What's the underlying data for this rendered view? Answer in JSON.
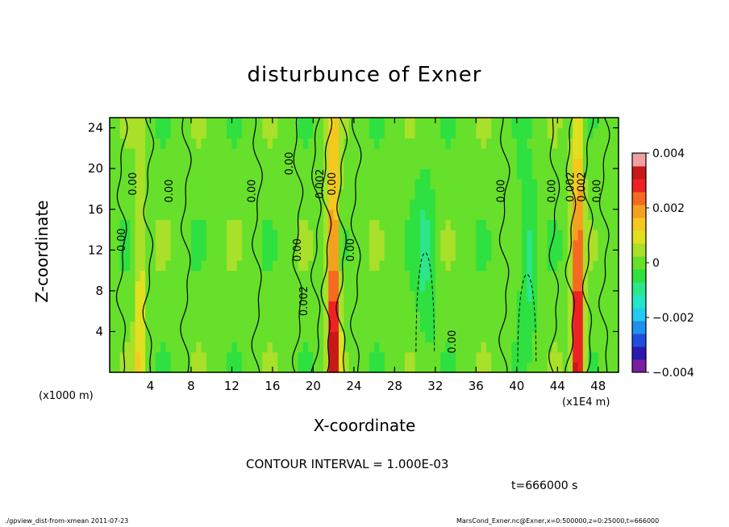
{
  "title": "disturbunce of Exner",
  "footer": {
    "left": "./gpview_dist-from-xmean   2011-07-23",
    "right": "MarsCond_Exner.nc@Exner,x=0:500000,z=0:25000,t=666000"
  },
  "contour_interval": "CONTOUR INTERVAL = 1.000E-03",
  "time_label": "t=666000 s",
  "chart_data": {
    "type": "heatmap",
    "title": "disturbunce of Exner",
    "xlabel": "X-coordinate",
    "ylabel": "Z-coordinate",
    "x_unit_label": "(x1000 m)",
    "x_scale_label": "(x1E4 m)",
    "xlim": [
      0,
      50
    ],
    "ylim": [
      0,
      25
    ],
    "x_ticks": [
      4,
      8,
      12,
      16,
      20,
      24,
      28,
      32,
      36,
      40,
      44,
      48
    ],
    "x_tick_labels": [
      "4",
      "8",
      "12",
      "16",
      "20",
      "24",
      "28",
      "32",
      "36",
      "40",
      "44",
      "48"
    ],
    "y_ticks": [
      4,
      8,
      12,
      16,
      20,
      24
    ],
    "y_tick_labels": [
      "4",
      "8",
      "12",
      "16",
      "20",
      "24"
    ],
    "colorbar": {
      "min": -0.004,
      "max": 0.004,
      "ticks": [
        0.004,
        0.002,
        0,
        -0.002,
        -0.004
      ],
      "tick_labels": [
        "0.004",
        "0.002",
        "0",
        "−0.002",
        "−0.004"
      ],
      "colors": [
        "#7a1fa0",
        "#2a1ab0",
        "#1f4fe0",
        "#1f8ff0",
        "#22ccf0",
        "#22e6c8",
        "#2ce68a",
        "#2ee040",
        "#66e02a",
        "#a8e02a",
        "#e0e020",
        "#f5c820",
        "#f5a020",
        "#f56a20",
        "#ee2222",
        "#c81818",
        "#f0a0a0"
      ]
    },
    "features": [
      {
        "x": 22,
        "amplitude": 0.0035,
        "width": 0.55,
        "label": "positive column"
      },
      {
        "x": 46,
        "amplitude": 0.0035,
        "width": 0.55,
        "label": "positive column"
      },
      {
        "x": 3,
        "amplitude": 0.0012,
        "width": 0.5,
        "label": "weak positive"
      },
      {
        "x": 31,
        "amplitude": -0.0008,
        "width": 0.9,
        "label": "negative region"
      },
      {
        "x": 41,
        "amplitude": -0.001,
        "width": 0.8,
        "label": "negative region"
      }
    ],
    "contour_labels": [
      "0.00",
      "0.00",
      "0.00",
      "0.00",
      "0.00",
      "0.002",
      "0.002",
      "0.00",
      "0.00",
      "0.00",
      "0.00",
      "0.002",
      "0.002",
      "0.00",
      "0.00",
      "0.00"
    ]
  }
}
